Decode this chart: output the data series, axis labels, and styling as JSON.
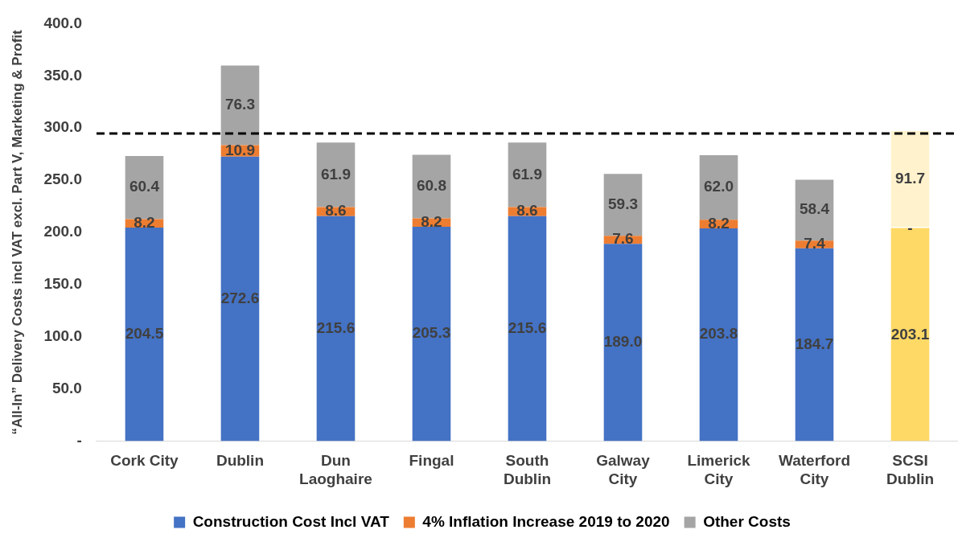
{
  "chart_data": {
    "type": "bar",
    "stacked": true,
    "ylabel": "“All-In” Delivery Costs incl VAT excl. Part V, Marketing & Profit",
    "categories": [
      "Cork City",
      "Dublin",
      "Dun Laoghaire",
      "Fingal",
      "South Dublin",
      "Galway City",
      "Limerick City",
      "Waterford City",
      "SCSI Dublin"
    ],
    "series": [
      {
        "name": "Construction Cost Incl VAT",
        "color": "#4472c4",
        "colors": [
          "#4472c4",
          "#4472c4",
          "#4472c4",
          "#4472c4",
          "#4472c4",
          "#4472c4",
          "#4472c4",
          "#4472c4",
          "#ffd966"
        ],
        "values": [
          204.5,
          272.6,
          215.6,
          205.3,
          215.6,
          189.0,
          203.8,
          184.7,
          203.1
        ],
        "value_labels": [
          "204.5",
          "272.6",
          "215.6",
          "205.3",
          "215.6",
          "189.0",
          "203.8",
          "184.7",
          "203.1"
        ]
      },
      {
        "name": "4% Inflation Increase 2019 to 2020",
        "color": "#ed7d31",
        "colors": [
          "#ed7d31",
          "#ed7d31",
          "#ed7d31",
          "#ed7d31",
          "#ed7d31",
          "#ed7d31",
          "#ed7d31",
          "#ed7d31",
          "#ffd966"
        ],
        "values": [
          8.2,
          10.9,
          8.6,
          8.2,
          8.6,
          7.6,
          8.2,
          7.4,
          0
        ],
        "value_labels": [
          "8.2",
          "10.9",
          "8.6",
          "8.2",
          "8.6",
          "7.6",
          "8.2",
          "7.4",
          "-"
        ]
      },
      {
        "name": "Other Costs",
        "color": "#a5a5a5",
        "colors": [
          "#a5a5a5",
          "#a5a5a5",
          "#a5a5a5",
          "#a5a5a5",
          "#a5a5a5",
          "#a5a5a5",
          "#a5a5a5",
          "#a5a5a5",
          "#fff2cc"
        ],
        "values": [
          60.4,
          76.3,
          61.9,
          60.8,
          61.9,
          59.3,
          62.0,
          58.4,
          91.7
        ],
        "value_labels": [
          "60.4",
          "76.3",
          "61.9",
          "60.8",
          "61.9",
          "59.3",
          "62.0",
          "58.4",
          "91.7"
        ]
      }
    ],
    "ylim": [
      0,
      400
    ],
    "yticks": [
      {
        "value": 0,
        "label": "-"
      },
      {
        "value": 50,
        "label": "50.0"
      },
      {
        "value": 100,
        "label": "100.0"
      },
      {
        "value": 150,
        "label": "150.0"
      },
      {
        "value": 200,
        "label": "200.0"
      },
      {
        "value": 250,
        "label": "250.0"
      },
      {
        "value": 300,
        "label": "300.0"
      },
      {
        "value": 350,
        "label": "350.0"
      },
      {
        "value": 400,
        "label": "400.0"
      }
    ],
    "ref_lines": [
      {
        "axis": "y",
        "value": 294.8,
        "color": "#000000",
        "line_style": "dashed"
      }
    ],
    "grid": false,
    "legend": "bottom"
  }
}
